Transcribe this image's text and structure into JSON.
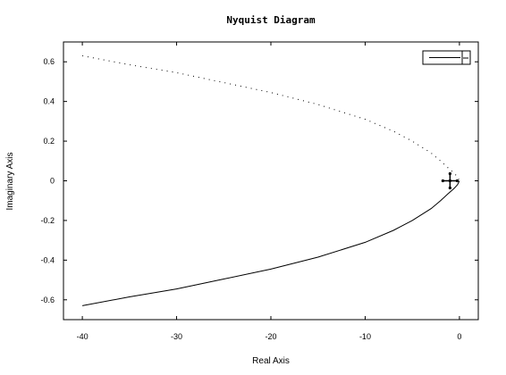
{
  "chart_data": {
    "type": "line",
    "title": "Nyquist Diagram",
    "xlabel": "Real Axis",
    "ylabel": "Imaginary Axis",
    "xlim": [
      -42,
      2
    ],
    "ylim": [
      -0.7,
      0.7
    ],
    "xticks": [
      -40,
      -30,
      -20,
      -10,
      0
    ],
    "yticks": [
      -0.6,
      -0.4,
      -0.2,
      0,
      0.2,
      0.4,
      0.6
    ],
    "xtick_labels": [
      "-40",
      "-30",
      "-20",
      "-10",
      "0"
    ],
    "ytick_labels": [
      "-0.6",
      "-0.4",
      "-0.2",
      "0",
      "0.2",
      "0.4",
      "0.6"
    ],
    "grid": false,
    "legend_position": "top-right",
    "series": [
      {
        "style": "solid",
        "color": "#000000",
        "x": [
          -40,
          -35,
          -30,
          -25,
          -20,
          -15,
          -10,
          -7,
          -5,
          -3,
          -2,
          -1.2,
          -0.6,
          -0.2,
          0
        ],
        "y": [
          -0.63,
          -0.585,
          -0.545,
          -0.495,
          -0.445,
          -0.385,
          -0.31,
          -0.25,
          -0.2,
          -0.14,
          -0.1,
          -0.065,
          -0.04,
          -0.02,
          0
        ]
      },
      {
        "style": "dotted",
        "color": "#000000",
        "x": [
          -40,
          -35,
          -30,
          -25,
          -20,
          -15,
          -10,
          -7,
          -5,
          -3,
          -2,
          -1.2,
          -0.6,
          -0.2,
          0
        ],
        "y": [
          0.63,
          0.585,
          0.545,
          0.495,
          0.445,
          0.385,
          0.31,
          0.25,
          0.2,
          0.14,
          0.1,
          0.065,
          0.04,
          0.02,
          0
        ]
      }
    ],
    "critical_point": {
      "x": -1,
      "y": 0
    }
  }
}
